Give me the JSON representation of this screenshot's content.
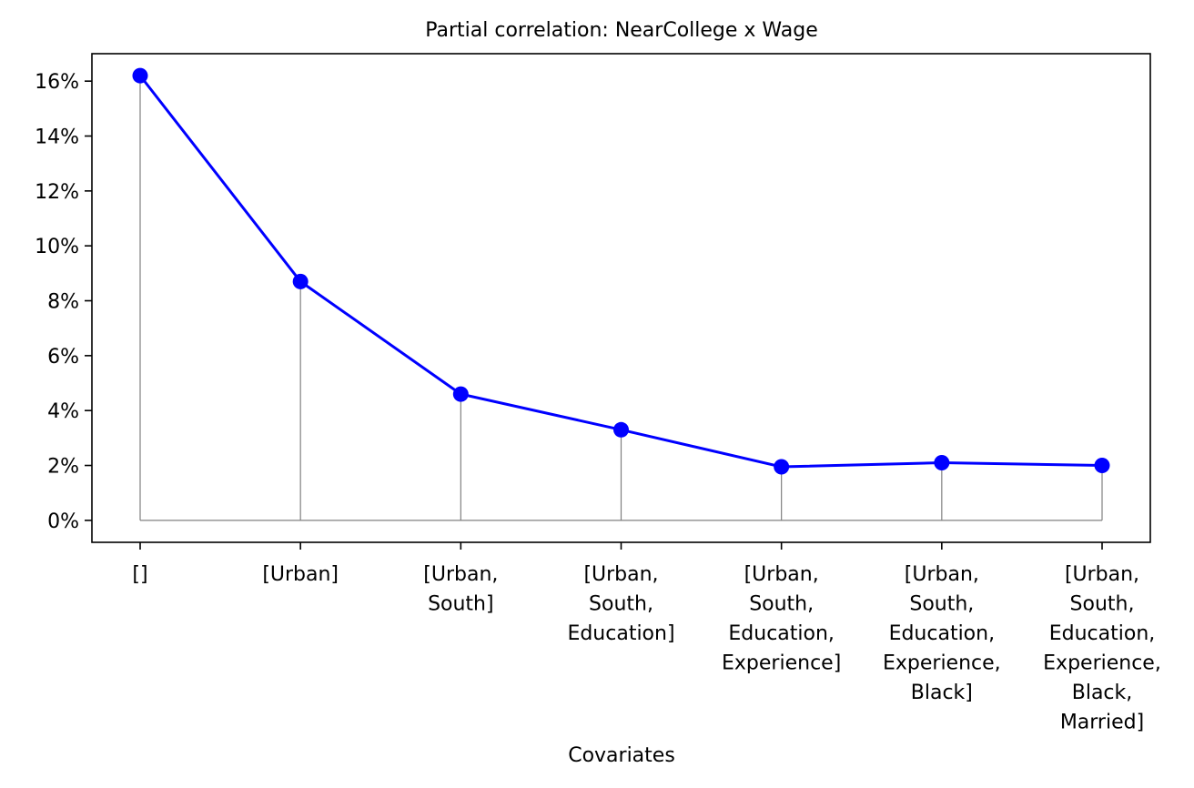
{
  "chart_data": {
    "type": "line",
    "title": "Partial correlation: NearCollege x Wage",
    "xlabel": "Covariates",
    "ylabel": "",
    "categories": [
      [
        "[]"
      ],
      [
        "[Urban]"
      ],
      [
        "[Urban,",
        "South]"
      ],
      [
        "[Urban,",
        "South,",
        "Education]"
      ],
      [
        "[Urban,",
        "South,",
        "Education,",
        "Experience]"
      ],
      [
        "[Urban,",
        "South,",
        "Education,",
        "Experience,",
        "Black]"
      ],
      [
        "[Urban,",
        "South,",
        "Education,",
        "Experience,",
        "Black,",
        "Married]"
      ]
    ],
    "values": [
      16.2,
      8.7,
      4.6,
      3.3,
      1.95,
      2.1,
      2.0
    ],
    "ylim": [
      -0.8,
      17.0
    ],
    "yticks": [
      0,
      2,
      4,
      6,
      8,
      10,
      12,
      14,
      16
    ],
    "ytick_labels": [
      "0%",
      "2%",
      "4%",
      "6%",
      "8%",
      "10%",
      "12%",
      "14%",
      "16%"
    ],
    "y_unit": "%",
    "grid": false,
    "stems": true,
    "stem_baseline": 0,
    "line_color": "#0000ff",
    "marker_color": "#0000ff",
    "stem_color": "#808080"
  }
}
